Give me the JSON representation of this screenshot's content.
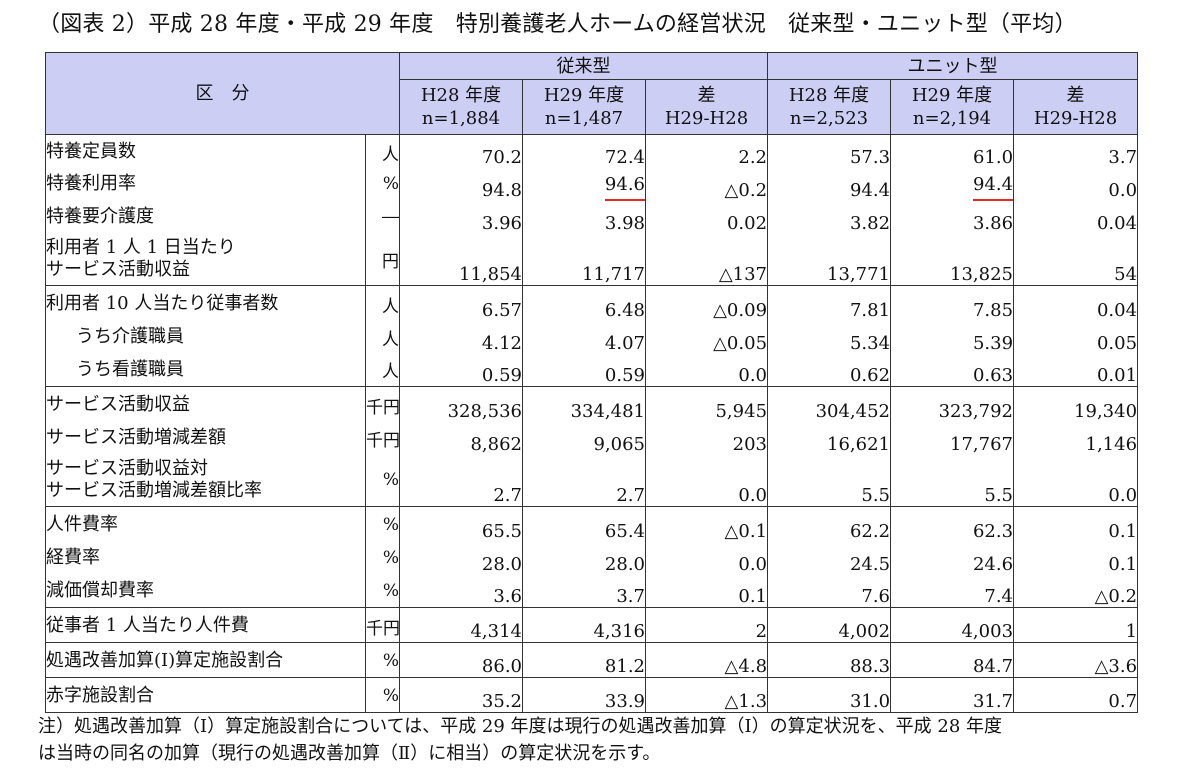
{
  "title": "（図表 2）平成 28 年度・平成 29 年度　特別養護老人ホームの経営状況　従来型・ユニット型（平均）",
  "header": {
    "category_label": "区　分",
    "groups": [
      "従来型",
      "ユニット型"
    ],
    "columns": [
      {
        "year": "H28 年度",
        "n": "n=1,884"
      },
      {
        "year": "H29 年度",
        "n": "n=1,487"
      },
      {
        "year": "差",
        "n": "H29-H28"
      },
      {
        "year": "H28 年度",
        "n": "n=2,523"
      },
      {
        "year": "H29 年度",
        "n": "n=2,194"
      },
      {
        "year": "差",
        "n": "H29-H28"
      }
    ]
  },
  "groups": [
    {
      "rows": [
        {
          "label": "特養定員数",
          "unit": "人",
          "values": [
            "70.2",
            "72.4",
            "2.2",
            "57.3",
            "61.0",
            "3.7"
          ]
        },
        {
          "label": "特養利用率",
          "unit": "%",
          "values": [
            "94.8",
            "94.6",
            "△0.2",
            "94.4",
            "94.4",
            "0.0"
          ],
          "underline": [
            1,
            4
          ]
        },
        {
          "label": "特養要介護度",
          "unit": "―",
          "values": [
            "3.96",
            "3.98",
            "0.02",
            "3.82",
            "3.86",
            "0.04"
          ]
        },
        {
          "label": [
            "利用者 1 人 1 日当たり",
            "サービス活動収益"
          ],
          "unit": "円",
          "values": [
            "11,854",
            "11,717",
            "△137",
            "13,771",
            "13,825",
            "54"
          ]
        }
      ]
    },
    {
      "rows": [
        {
          "label": "利用者 10 人当たり従事者数",
          "unit": "人",
          "values": [
            "6.57",
            "6.48",
            "△0.09",
            "7.81",
            "7.85",
            "0.04"
          ]
        },
        {
          "label": "うち介護職員",
          "unit": "人",
          "indent": true,
          "values": [
            "4.12",
            "4.07",
            "△0.05",
            "5.34",
            "5.39",
            "0.05"
          ]
        },
        {
          "label": "うち看護職員",
          "unit": "人",
          "indent": true,
          "values": [
            "0.59",
            "0.59",
            "0.0",
            "0.62",
            "0.63",
            "0.01"
          ]
        }
      ]
    },
    {
      "rows": [
        {
          "label": "サービス活動収益",
          "unit": "千円",
          "values": [
            "328,536",
            "334,481",
            "5,945",
            "304,452",
            "323,792",
            "19,340"
          ]
        },
        {
          "label": "サービス活動増減差額",
          "unit": "千円",
          "values": [
            "8,862",
            "9,065",
            "203",
            "16,621",
            "17,767",
            "1,146"
          ]
        },
        {
          "label": [
            "サービス活動収益対",
            "サービス活動増減差額比率"
          ],
          "unit": "%",
          "values": [
            "2.7",
            "2.7",
            "0.0",
            "5.5",
            "5.5",
            "0.0"
          ]
        }
      ]
    },
    {
      "rows": [
        {
          "label": "人件費率",
          "unit": "%",
          "values": [
            "65.5",
            "65.4",
            "△0.1",
            "62.2",
            "62.3",
            "0.1"
          ]
        },
        {
          "label": "経費率",
          "unit": "%",
          "values": [
            "28.0",
            "28.0",
            "0.0",
            "24.5",
            "24.6",
            "0.1"
          ]
        },
        {
          "label": "減価償却費率",
          "unit": "%",
          "values": [
            "3.6",
            "3.7",
            "0.1",
            "7.6",
            "7.4",
            "△0.2"
          ]
        }
      ]
    },
    {
      "rows": [
        {
          "label": "従事者 1 人当たり人件費",
          "unit": "千円",
          "values": [
            "4,314",
            "4,316",
            "2",
            "4,002",
            "4,003",
            "1"
          ]
        }
      ]
    },
    {
      "rows": [
        {
          "label": "処遇改善加算(Ⅰ)算定施設割合",
          "unit": "%",
          "values": [
            "86.0",
            "81.2",
            "△4.8",
            "88.3",
            "84.7",
            "△3.6"
          ]
        }
      ]
    },
    {
      "rows": [
        {
          "label": "赤字施設割合",
          "unit": "%",
          "values": [
            "35.2",
            "33.9",
            "△1.3",
            "31.0",
            "31.7",
            "0.7"
          ]
        }
      ]
    }
  ],
  "note": [
    "注）処遇改善加算（Ⅰ）算定施設割合については、平成 29 年度は現行の処遇改善加算（Ⅰ）の算定状況を、平成 28 年度",
    "は当時の同名の加算（現行の処遇改善加算（Ⅱ）に相当）の算定状況を示す。"
  ],
  "colors": {
    "header_bg": "#cccff3",
    "underline": "#e22d24"
  }
}
